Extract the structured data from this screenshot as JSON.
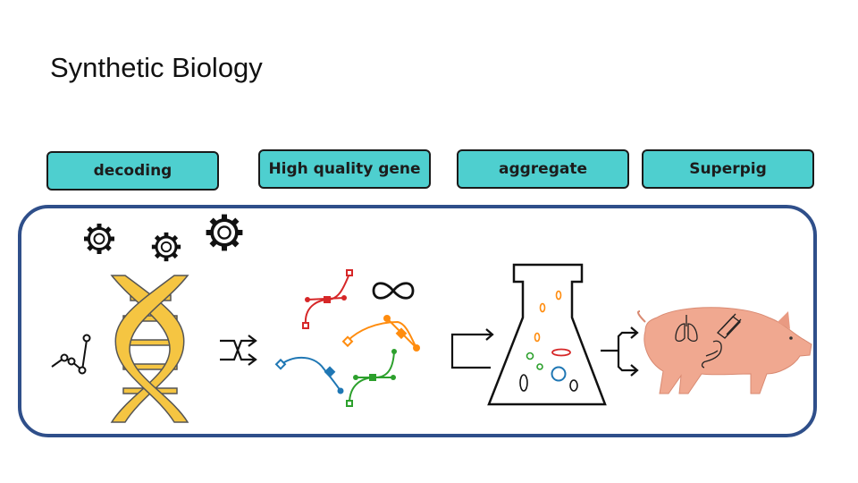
{
  "slide": {
    "title": "Synthetic Biology"
  },
  "stages": [
    {
      "label": "decoding"
    },
    {
      "label": "High quality gene"
    },
    {
      "label": "aggregate"
    },
    {
      "label": "Superpig"
    }
  ],
  "colors": {
    "label_fill": "#4ecfcf",
    "frame_border": "#2f4f8a",
    "dna": "#f5c542",
    "pig": "#f0a890",
    "curve_red": "#d62728",
    "curve_orange": "#ff8c0e",
    "curve_blue": "#1f77b4",
    "curve_green": "#2ca02c"
  },
  "icons": [
    "gear-icon",
    "line-chart-icon",
    "dna-helix-icon",
    "shuffle-arrows-icon",
    "bezier-curves-icon",
    "infinity-icon",
    "branch-arrow-icon",
    "flask-icon",
    "split-arrows-icon",
    "pig-icon",
    "lungs-icon",
    "stomach-icon",
    "bacon-icon"
  ]
}
